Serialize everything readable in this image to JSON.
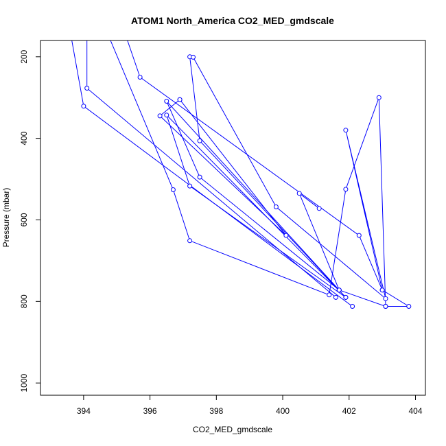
{
  "chart_data": {
    "type": "line",
    "title": "ATOM1 North_America CO2_MED_gmdscale",
    "xlabel": "CO2_MED_gmdscale",
    "ylabel": "Pressure (mbar)",
    "xlim": [
      392.7,
      404.3
    ],
    "ylim": [
      1030,
      160
    ],
    "y_reversed": true,
    "xticks": [
      394,
      396,
      398,
      400,
      402,
      404
    ],
    "yticks": [
      200,
      400,
      600,
      800,
      1000
    ],
    "marker": "open-circle",
    "color": "#0000ff",
    "grid": false,
    "legend": "none",
    "series": [
      {
        "x": [
          393.4,
          394.0,
          402.1
        ],
        "y": [
          50,
          321,
          812
        ]
      },
      {
        "x": [
          394.1,
          394.1,
          401.6
        ],
        "y": [
          50,
          277,
          790
        ]
      },
      {
        "x": [
          394.5,
          396.7,
          397.2,
          401.4,
          401.9,
          402.9,
          403.1
        ],
        "y": [
          100,
          526,
          651,
          784,
          525,
          300,
          812
        ]
      },
      {
        "x": [
          394.9,
          395.7,
          402.3,
          403.0,
          403.8,
          403.1,
          401.7,
          396.5,
          397.5,
          401.7
        ],
        "y": [
          60,
          250,
          638,
          772,
          812,
          812,
          772,
          309,
          495,
          772
        ]
      },
      {
        "x": [
          397.2,
          397.5,
          401.9,
          396.5,
          397.2,
          401.9
        ],
        "y": [
          200,
          406,
          790,
          343,
          517,
          790
        ]
      },
      {
        "x": [
          397.3,
          399.8,
          403.1,
          401.9,
          403.0
        ],
        "y": [
          201,
          568,
          793,
          380,
          772
        ]
      },
      {
        "x": [
          396.9,
          396.3,
          400.1,
          396.9
        ],
        "y": [
          305,
          345,
          638,
          305
        ]
      },
      {
        "x": [
          401.1,
          400.5,
          401.7
        ],
        "y": [
          572,
          535,
          772
        ]
      }
    ]
  }
}
